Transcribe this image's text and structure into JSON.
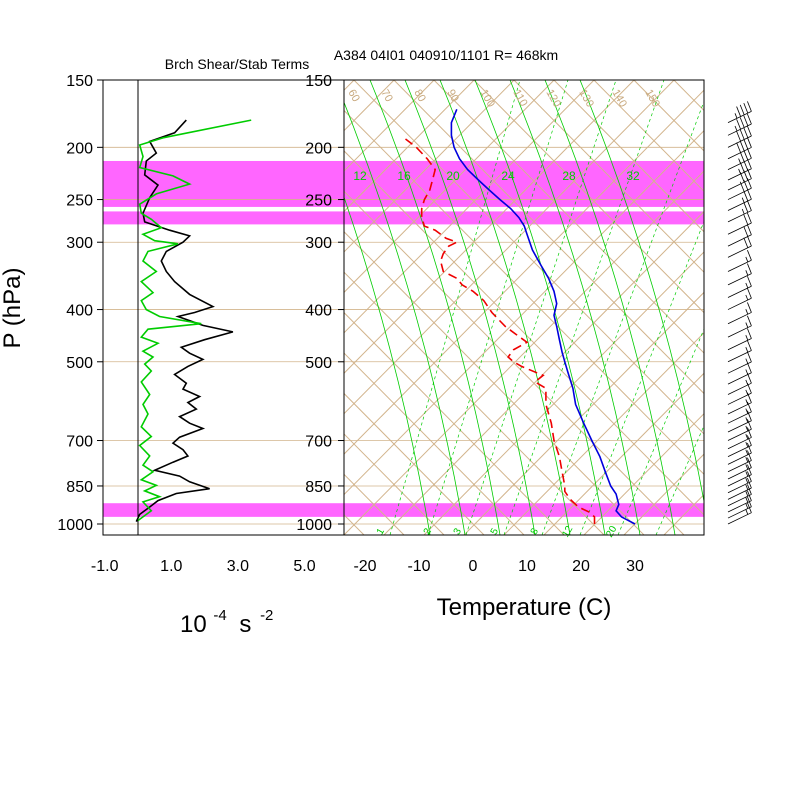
{
  "colors": {
    "highlight": "#ff66ff",
    "grid_tan": "#d2b48c",
    "label_tan": "#c8a97e",
    "green": "#00cc00",
    "temp_line": "#0000dd",
    "dewpoint_line": "#ee0000",
    "black": "#000000"
  },
  "chart_data": [
    {
      "type": "line",
      "title": "Brch Shear/Stab Terms",
      "xlabel": "10",
      "xlabel_exponent": "-4",
      "xlabel_unit": "s",
      "xlabel_unit_exponent": "-2",
      "ylabel": "P (hPa)",
      "xlim": [
        -1.0,
        5.0
      ],
      "x_ticks": [
        "-1.0",
        "1.0",
        "3.0",
        "5.0"
      ],
      "y_scale": "log",
      "ylim": [
        1000,
        150
      ],
      "y_ticks": [
        "150",
        "200",
        "250",
        "300",
        "400",
        "500",
        "700",
        "850",
        "1000"
      ],
      "y_tick_values": [
        150,
        200,
        250,
        300,
        400,
        500,
        700,
        850,
        1000
      ],
      "highlight_bands_hpa": [
        [
          212,
          258
        ],
        [
          263,
          278
        ],
        [
          915,
          970
        ]
      ],
      "series": [
        {
          "color": "black",
          "points": [
            [
              1.45,
              178
            ],
            [
              1.1,
              188
            ],
            [
              0.35,
              195
            ],
            [
              0.55,
              205
            ],
            [
              0.25,
              212
            ],
            [
              0.2,
              225
            ],
            [
              0.6,
              235
            ],
            [
              0.35,
              248
            ],
            [
              0.15,
              265
            ],
            [
              0.2,
              275
            ],
            [
              0.95,
              285
            ],
            [
              1.55,
              292
            ],
            [
              1.35,
              300
            ],
            [
              0.85,
              312
            ],
            [
              0.7,
              325
            ],
            [
              0.85,
              340
            ],
            [
              1.1,
              355
            ],
            [
              1.55,
              375
            ],
            [
              2.25,
              395
            ],
            [
              1.7,
              405
            ],
            [
              1.2,
              412
            ],
            [
              1.95,
              428
            ],
            [
              2.85,
              440
            ],
            [
              2.0,
              455
            ],
            [
              1.3,
              470
            ],
            [
              1.55,
              482
            ],
            [
              1.95,
              495
            ],
            [
              1.5,
              510
            ],
            [
              1.1,
              528
            ],
            [
              1.45,
              548
            ],
            [
              1.35,
              562
            ],
            [
              1.85,
              580
            ],
            [
              1.5,
              595
            ],
            [
              1.75,
              612
            ],
            [
              1.25,
              632
            ],
            [
              1.55,
              650
            ],
            [
              1.95,
              665
            ],
            [
              1.25,
              690
            ],
            [
              1.05,
              708
            ],
            [
              1.35,
              728
            ],
            [
              1.5,
              748
            ],
            [
              1.05,
              768
            ],
            [
              0.5,
              795
            ],
            [
              1.25,
              815
            ],
            [
              1.55,
              835
            ],
            [
              2.15,
              860
            ],
            [
              1.15,
              878
            ],
            [
              0.6,
              905
            ],
            [
              0.35,
              930
            ],
            [
              0.05,
              960
            ],
            [
              -0.05,
              990
            ]
          ]
        },
        {
          "color": "green",
          "points": [
            [
              3.4,
              178
            ],
            [
              0.75,
              192
            ],
            [
              0.05,
              198
            ],
            [
              0.15,
              208
            ],
            [
              0.05,
              218
            ],
            [
              1.05,
              226
            ],
            [
              1.55,
              234
            ],
            [
              0.55,
              244
            ],
            [
              0.05,
              255
            ],
            [
              0.1,
              265
            ],
            [
              0.4,
              272
            ],
            [
              0.7,
              282
            ],
            [
              0.15,
              290
            ],
            [
              0.5,
              298
            ],
            [
              1.2,
              302
            ],
            [
              0.3,
              312
            ],
            [
              0.15,
              325
            ],
            [
              0.55,
              340
            ],
            [
              0.1,
              355
            ],
            [
              0.45,
              372
            ],
            [
              0.1,
              385
            ],
            [
              0.25,
              400
            ],
            [
              0.65,
              412
            ],
            [
              1.9,
              425
            ],
            [
              0.3,
              435
            ],
            [
              0.1,
              450
            ],
            [
              0.6,
              462
            ],
            [
              0.15,
              478
            ],
            [
              0.45,
              490
            ],
            [
              0.2,
              505
            ],
            [
              0.4,
              520
            ],
            [
              0.1,
              545
            ],
            [
              0.35,
              575
            ],
            [
              0.15,
              600
            ],
            [
              0.3,
              625
            ],
            [
              0.1,
              660
            ],
            [
              0.4,
              688
            ],
            [
              0.05,
              715
            ],
            [
              0.35,
              748
            ],
            [
              0.15,
              778
            ],
            [
              0.45,
              800
            ],
            [
              0.1,
              828
            ],
            [
              0.55,
              848
            ],
            [
              0.2,
              868
            ],
            [
              0.65,
              890
            ],
            [
              0.15,
              910
            ],
            [
              0.4,
              945
            ],
            [
              0.0,
              985
            ]
          ]
        }
      ]
    },
    {
      "type": "line",
      "title": "A384 04I01 040910/1101 R= 468km",
      "xlabel": "Temperature (C)",
      "xlim": [
        -25,
        40
      ],
      "x_ticks": [
        "-20",
        "-10",
        "0",
        "10",
        "20",
        "30"
      ],
      "y_scale": "log",
      "ylim": [
        1000,
        150
      ],
      "y_ticks": [
        "150",
        "200",
        "250",
        "300",
        "400",
        "500",
        "700",
        "850",
        "1000"
      ],
      "y_tick_values": [
        150,
        200,
        250,
        300,
        400,
        500,
        700,
        850,
        1000
      ],
      "isotherm_labels": [
        "60",
        "70",
        "80",
        "90",
        "100",
        "110",
        "120",
        "130",
        "140",
        "150"
      ],
      "mixing_ratio_labels_top": [
        "12",
        "16",
        "20",
        "24",
        "28",
        "32"
      ],
      "mixing_ratio_labels_bottom": [
        "1",
        "2",
        "3",
        "5",
        "8",
        "12",
        "20"
      ],
      "series": [
        {
          "color": "blue",
          "points": [
            [
              30.0,
              1000
            ],
            [
              27.5,
              970
            ],
            [
              26.5,
              945
            ],
            [
              27.0,
              920
            ],
            [
              26.5,
              880
            ],
            [
              25.5,
              850
            ],
            [
              24.5,
              800
            ],
            [
              23.5,
              750
            ],
            [
              22.0,
              700
            ],
            [
              20.5,
              650
            ],
            [
              19.0,
              600
            ],
            [
              18.5,
              560
            ],
            [
              17.5,
              520
            ],
            [
              17.0,
              500
            ],
            [
              16.5,
              480
            ],
            [
              16.0,
              455
            ],
            [
              15.5,
              430
            ],
            [
              15.0,
              410
            ],
            [
              15.5,
              390
            ],
            [
              15.0,
              370
            ],
            [
              14.0,
              350
            ],
            [
              12.5,
              330
            ],
            [
              11.0,
              310
            ],
            [
              10.0,
              290
            ],
            [
              9.5,
              280
            ],
            [
              8.5,
              270
            ],
            [
              7.0,
              260
            ],
            [
              5.0,
              250
            ],
            [
              3.0,
              240
            ],
            [
              1.0,
              230
            ],
            [
              -1.0,
              220
            ],
            [
              -2.5,
              210
            ],
            [
              -3.5,
              200
            ],
            [
              -4.0,
              190
            ],
            [
              -4.0,
              180
            ],
            [
              -3.0,
              170
            ]
          ]
        },
        {
          "color": "red",
          "points": [
            [
              22.5,
              1000
            ],
            [
              22.5,
              970
            ],
            [
              21.5,
              950
            ],
            [
              19.5,
              930
            ],
            [
              18.0,
              900
            ],
            [
              17.0,
              870
            ],
            [
              17.0,
              850
            ],
            [
              16.5,
              800
            ],
            [
              16.0,
              750
            ],
            [
              15.0,
              700
            ],
            [
              14.5,
              650
            ],
            [
              13.5,
              600
            ],
            [
              13.5,
              560
            ],
            [
              11.5,
              545
            ],
            [
              13.0,
              530
            ],
            [
              10.0,
              515
            ],
            [
              9.0,
              510
            ],
            [
              7.5,
              500
            ],
            [
              6.5,
              490
            ],
            [
              7.5,
              475
            ],
            [
              10.0,
              460
            ],
            [
              8.0,
              445
            ],
            [
              6.0,
              430
            ],
            [
              5.0,
              420
            ],
            [
              3.5,
              405
            ],
            [
              2.0,
              385
            ],
            [
              0.0,
              370
            ],
            [
              -2.0,
              360
            ],
            [
              -3.0,
              350
            ],
            [
              -5.5,
              340
            ],
            [
              -6.0,
              325
            ],
            [
              -5.5,
              315
            ],
            [
              -4.5,
              305
            ],
            [
              -3.0,
              300
            ],
            [
              -5.0,
              295
            ],
            [
              -7.0,
              285
            ],
            [
              -9.0,
              280
            ],
            [
              -9.5,
              270
            ],
            [
              -9.5,
              260
            ],
            [
              -9.0,
              250
            ],
            [
              -8.0,
              240
            ],
            [
              -7.5,
              230
            ],
            [
              -7.0,
              220
            ],
            [
              -8.5,
              210
            ],
            [
              -10.5,
              200
            ],
            [
              -12.5,
              193
            ]
          ]
        }
      ]
    },
    {
      "type": "barbs",
      "description_present": false,
      "barbs": [
        {
          "p": 180,
          "label_spd": 45
        },
        {
          "p": 190,
          "label_spd": 45
        },
        {
          "p": 200,
          "label_spd": 40
        },
        {
          "p": 210,
          "label_spd": 40
        },
        {
          "p": 220,
          "label_spd": 35
        },
        {
          "p": 230,
          "label_spd": 35
        },
        {
          "p": 240,
          "label_spd": 30
        },
        {
          "p": 250,
          "label_spd": 30
        },
        {
          "p": 262,
          "label_spd": 25
        },
        {
          "p": 275,
          "label_spd": 25
        },
        {
          "p": 290,
          "label_spd": 20
        },
        {
          "p": 305,
          "label_spd": 20
        },
        {
          "p": 320,
          "label_spd": 20
        },
        {
          "p": 340,
          "label_spd": 15
        },
        {
          "p": 360,
          "label_spd": 15
        },
        {
          "p": 380,
          "label_spd": 15
        },
        {
          "p": 400,
          "label_spd": 15
        },
        {
          "p": 425,
          "label_spd": 15
        },
        {
          "p": 450,
          "label_spd": 15
        },
        {
          "p": 475,
          "label_spd": 15
        },
        {
          "p": 500,
          "label_spd": 15
        },
        {
          "p": 525,
          "label_spd": 15
        },
        {
          "p": 550,
          "label_spd": 15
        },
        {
          "p": 575,
          "label_spd": 15
        },
        {
          "p": 600,
          "label_spd": 15
        },
        {
          "p": 625,
          "label_spd": 15
        },
        {
          "p": 650,
          "label_spd": 15
        },
        {
          "p": 675,
          "label_spd": 15
        },
        {
          "p": 700,
          "label_spd": 15
        },
        {
          "p": 725,
          "label_spd": 15
        },
        {
          "p": 750,
          "label_spd": 15
        },
        {
          "p": 775,
          "label_spd": 15
        },
        {
          "p": 800,
          "label_spd": 15
        },
        {
          "p": 825,
          "label_spd": 15
        },
        {
          "p": 850,
          "label_spd": 15
        },
        {
          "p": 875,
          "label_spd": 15
        },
        {
          "p": 900,
          "label_spd": 15
        },
        {
          "p": 925,
          "label_spd": 15
        },
        {
          "p": 950,
          "label_spd": 15
        },
        {
          "p": 975,
          "label_spd": 15
        },
        {
          "p": 1000,
          "label_spd": 15
        }
      ]
    }
  ]
}
